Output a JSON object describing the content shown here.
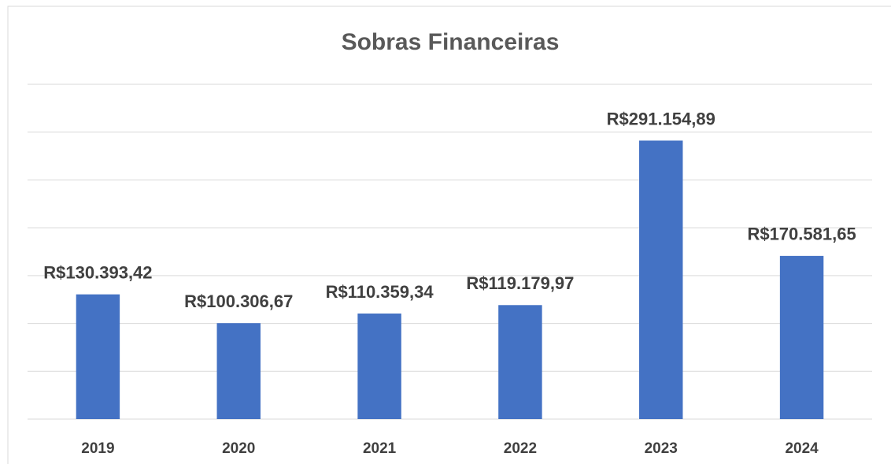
{
  "chart_data": {
    "type": "bar",
    "title": "Sobras Financeiras",
    "categories": [
      "2019",
      "2020",
      "2021",
      "2022",
      "2023",
      "2024"
    ],
    "values": [
      130393.42,
      100306.67,
      110359.34,
      119179.97,
      291154.89,
      170581.65
    ],
    "value_labels": [
      "R$130.393,42",
      "R$100.306,67",
      "R$110.359,34",
      "R$119.179,97",
      "R$291.154,89",
      "R$170.581,65"
    ],
    "color": "#4472c4",
    "ylim": [
      0,
      350000
    ],
    "yticks": [
      0,
      50000,
      100000,
      150000,
      200000,
      250000,
      300000,
      350000
    ],
    "grid": true
  }
}
